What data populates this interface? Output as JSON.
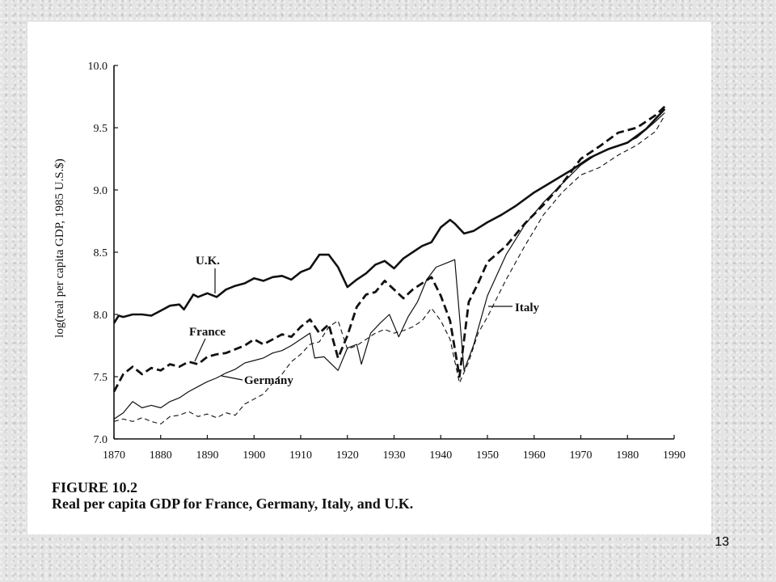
{
  "page_number": "13",
  "chart_data": {
    "type": "line",
    "title": "FIGURE 10.2",
    "subtitle": "Real per capita GDP for France, Germany, Italy, and U.K.",
    "xlabel": "",
    "ylabel": "log(real per capita GDP, 1985 U.S.$)",
    "xlim": [
      1870,
      1990
    ],
    "ylim": [
      7.0,
      10.0
    ],
    "xticks": [
      "1870",
      "1880",
      "1890",
      "1900",
      "1910",
      "1920",
      "1930",
      "1940",
      "1950",
      "1960",
      "1970",
      "1980",
      "1990"
    ],
    "yticks": [
      "7.0",
      "7.5",
      "8.0",
      "8.5",
      "9.0",
      "9.5",
      "10.0"
    ],
    "grid": false,
    "legend": "inline labels",
    "series": [
      {
        "name": "U.K.",
        "style": "thick-solid",
        "color": "#111111",
        "points": [
          [
            1870,
            7.93
          ],
          [
            1871,
            7.99
          ],
          [
            1872,
            7.98
          ],
          [
            1874,
            8.0
          ],
          [
            1876,
            8.0
          ],
          [
            1878,
            7.99
          ],
          [
            1880,
            8.03
          ],
          [
            1882,
            8.07
          ],
          [
            1884,
            8.08
          ],
          [
            1885,
            8.04
          ],
          [
            1887,
            8.16
          ],
          [
            1888,
            8.14
          ],
          [
            1890,
            8.17
          ],
          [
            1892,
            8.14
          ],
          [
            1894,
            8.2
          ],
          [
            1896,
            8.23
          ],
          [
            1898,
            8.25
          ],
          [
            1900,
            8.29
          ],
          [
            1902,
            8.27
          ],
          [
            1904,
            8.3
          ],
          [
            1906,
            8.31
          ],
          [
            1908,
            8.28
          ],
          [
            1910,
            8.34
          ],
          [
            1912,
            8.37
          ],
          [
            1914,
            8.48
          ],
          [
            1916,
            8.48
          ],
          [
            1918,
            8.38
          ],
          [
            1920,
            8.22
          ],
          [
            1922,
            8.28
          ],
          [
            1924,
            8.33
          ],
          [
            1926,
            8.4
          ],
          [
            1928,
            8.43
          ],
          [
            1930,
            8.37
          ],
          [
            1932,
            8.45
          ],
          [
            1934,
            8.5
          ],
          [
            1936,
            8.55
          ],
          [
            1938,
            8.58
          ],
          [
            1940,
            8.7
          ],
          [
            1942,
            8.76
          ],
          [
            1943,
            8.73
          ],
          [
            1945,
            8.65
          ],
          [
            1947,
            8.67
          ],
          [
            1950,
            8.74
          ],
          [
            1953,
            8.8
          ],
          [
            1956,
            8.87
          ],
          [
            1960,
            8.98
          ],
          [
            1964,
            9.07
          ],
          [
            1968,
            9.16
          ],
          [
            1972,
            9.26
          ],
          [
            1976,
            9.33
          ],
          [
            1980,
            9.38
          ],
          [
            1984,
            9.49
          ],
          [
            1988,
            9.65
          ]
        ]
      },
      {
        "name": "France",
        "style": "thick-dashed",
        "color": "#111111",
        "points": [
          [
            1870,
            7.38
          ],
          [
            1872,
            7.52
          ],
          [
            1874,
            7.58
          ],
          [
            1876,
            7.52
          ],
          [
            1878,
            7.57
          ],
          [
            1880,
            7.55
          ],
          [
            1882,
            7.6
          ],
          [
            1884,
            7.58
          ],
          [
            1886,
            7.62
          ],
          [
            1888,
            7.6
          ],
          [
            1890,
            7.66
          ],
          [
            1892,
            7.68
          ],
          [
            1894,
            7.69
          ],
          [
            1896,
            7.72
          ],
          [
            1898,
            7.75
          ],
          [
            1900,
            7.8
          ],
          [
            1902,
            7.76
          ],
          [
            1904,
            7.8
          ],
          [
            1906,
            7.84
          ],
          [
            1908,
            7.82
          ],
          [
            1910,
            7.9
          ],
          [
            1912,
            7.96
          ],
          [
            1914,
            7.85
          ],
          [
            1916,
            7.92
          ],
          [
            1918,
            7.65
          ],
          [
            1920,
            7.83
          ],
          [
            1922,
            8.06
          ],
          [
            1924,
            8.16
          ],
          [
            1926,
            8.18
          ],
          [
            1928,
            8.27
          ],
          [
            1930,
            8.2
          ],
          [
            1932,
            8.13
          ],
          [
            1934,
            8.2
          ],
          [
            1936,
            8.25
          ],
          [
            1938,
            8.3
          ],
          [
            1940,
            8.15
          ],
          [
            1942,
            7.95
          ],
          [
            1944,
            7.5
          ],
          [
            1946,
            8.1
          ],
          [
            1948,
            8.25
          ],
          [
            1950,
            8.42
          ],
          [
            1954,
            8.55
          ],
          [
            1958,
            8.73
          ],
          [
            1962,
            8.88
          ],
          [
            1966,
            9.05
          ],
          [
            1970,
            9.25
          ],
          [
            1974,
            9.35
          ],
          [
            1978,
            9.46
          ],
          [
            1982,
            9.5
          ],
          [
            1986,
            9.6
          ],
          [
            1988,
            9.67
          ]
        ]
      },
      {
        "name": "Germany",
        "style": "thin-solid",
        "color": "#111111",
        "points": [
          [
            1870,
            7.16
          ],
          [
            1872,
            7.21
          ],
          [
            1874,
            7.3
          ],
          [
            1876,
            7.25
          ],
          [
            1878,
            7.27
          ],
          [
            1880,
            7.25
          ],
          [
            1882,
            7.3
          ],
          [
            1884,
            7.33
          ],
          [
            1886,
            7.38
          ],
          [
            1888,
            7.42
          ],
          [
            1890,
            7.46
          ],
          [
            1892,
            7.49
          ],
          [
            1894,
            7.53
          ],
          [
            1896,
            7.56
          ],
          [
            1898,
            7.61
          ],
          [
            1900,
            7.63
          ],
          [
            1902,
            7.65
          ],
          [
            1904,
            7.69
          ],
          [
            1906,
            7.71
          ],
          [
            1908,
            7.75
          ],
          [
            1910,
            7.8
          ],
          [
            1912,
            7.85
          ],
          [
            1913,
            7.65
          ],
          [
            1915,
            7.66
          ],
          [
            1918,
            7.55
          ],
          [
            1920,
            7.73
          ],
          [
            1922,
            7.76
          ],
          [
            1923,
            7.6
          ],
          [
            1925,
            7.85
          ],
          [
            1927,
            7.93
          ],
          [
            1929,
            8.0
          ],
          [
            1931,
            7.82
          ],
          [
            1933,
            7.98
          ],
          [
            1935,
            8.1
          ],
          [
            1937,
            8.28
          ],
          [
            1939,
            8.38
          ],
          [
            1941,
            8.41
          ],
          [
            1943,
            8.44
          ],
          [
            1945,
            7.55
          ],
          [
            1947,
            7.75
          ],
          [
            1950,
            8.15
          ],
          [
            1954,
            8.48
          ],
          [
            1958,
            8.72
          ],
          [
            1962,
            8.9
          ],
          [
            1966,
            9.05
          ],
          [
            1970,
            9.2
          ],
          [
            1974,
            9.3
          ],
          [
            1978,
            9.35
          ],
          [
            1982,
            9.42
          ],
          [
            1986,
            9.55
          ],
          [
            1988,
            9.62
          ]
        ]
      },
      {
        "name": "Italy",
        "style": "thin-dashed",
        "color": "#111111",
        "points": [
          [
            1870,
            7.14
          ],
          [
            1872,
            7.16
          ],
          [
            1874,
            7.14
          ],
          [
            1876,
            7.17
          ],
          [
            1878,
            7.14
          ],
          [
            1880,
            7.12
          ],
          [
            1882,
            7.18
          ],
          [
            1884,
            7.19
          ],
          [
            1886,
            7.22
          ],
          [
            1888,
            7.18
          ],
          [
            1890,
            7.2
          ],
          [
            1892,
            7.17
          ],
          [
            1894,
            7.21
          ],
          [
            1896,
            7.19
          ],
          [
            1898,
            7.28
          ],
          [
            1900,
            7.32
          ],
          [
            1902,
            7.36
          ],
          [
            1904,
            7.45
          ],
          [
            1906,
            7.52
          ],
          [
            1908,
            7.62
          ],
          [
            1910,
            7.68
          ],
          [
            1912,
            7.76
          ],
          [
            1914,
            7.78
          ],
          [
            1916,
            7.9
          ],
          [
            1918,
            7.95
          ],
          [
            1920,
            7.72
          ],
          [
            1922,
            7.75
          ],
          [
            1924,
            7.8
          ],
          [
            1926,
            7.85
          ],
          [
            1928,
            7.88
          ],
          [
            1930,
            7.85
          ],
          [
            1932,
            7.87
          ],
          [
            1934,
            7.9
          ],
          [
            1936,
            7.95
          ],
          [
            1938,
            8.05
          ],
          [
            1940,
            7.95
          ],
          [
            1942,
            7.8
          ],
          [
            1944,
            7.45
          ],
          [
            1946,
            7.62
          ],
          [
            1948,
            7.85
          ],
          [
            1950,
            7.98
          ],
          [
            1954,
            8.28
          ],
          [
            1958,
            8.55
          ],
          [
            1962,
            8.8
          ],
          [
            1966,
            8.98
          ],
          [
            1970,
            9.12
          ],
          [
            1974,
            9.18
          ],
          [
            1978,
            9.28
          ],
          [
            1982,
            9.36
          ],
          [
            1986,
            9.47
          ],
          [
            1988,
            9.6
          ]
        ]
      }
    ],
    "annotations": [
      {
        "text": "U.K.",
        "target_year": 1891.5,
        "target_value": 8.17
      },
      {
        "text": "France",
        "target_year": 1888,
        "target_value": 7.6
      },
      {
        "text": "Germany",
        "target_year": 1894,
        "target_value": 7.53
      },
      {
        "text": "Italy",
        "target_year": 1950,
        "target_value": 8.1
      }
    ]
  }
}
